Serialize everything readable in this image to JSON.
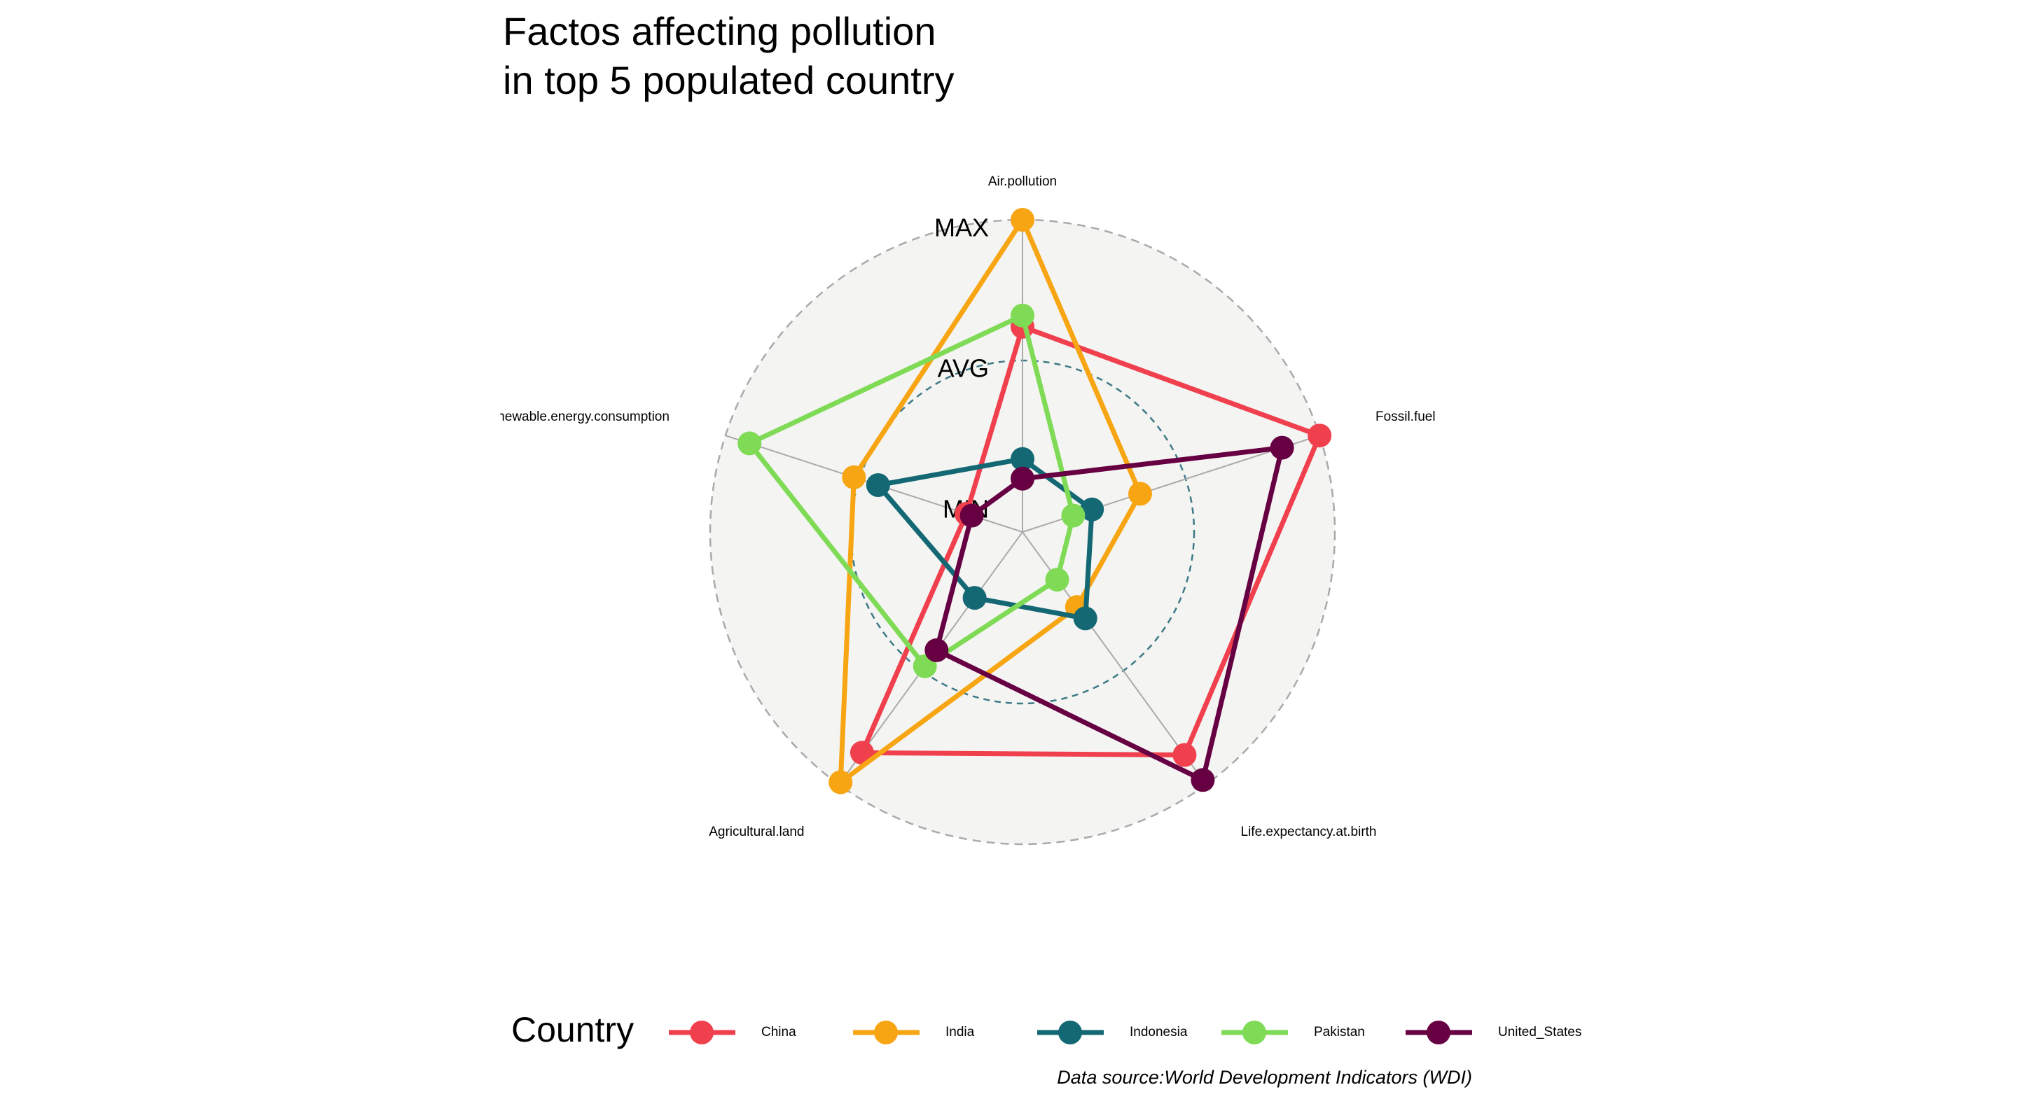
{
  "chart_data": {
    "type": "radar",
    "title_lines": [
      "Factos affecting pollution",
      "in top 5 populated country"
    ],
    "axes": [
      "Air.pollution",
      "Fossil.fuel",
      "Life.expectancy.at.birth",
      "Agricultural.land",
      "Renewable.energy.consumption"
    ],
    "grid_labels": {
      "max": "MAX",
      "avg": "AVG",
      "min": "MIN"
    },
    "scale": {
      "min": 0,
      "max": 1
    },
    "legend_title": "Country",
    "legend_position": "bottom",
    "caption": "Data source:World Development Indicators (WDI)",
    "series": [
      {
        "name": "China",
        "color": "#f0404e",
        "values": [
          0.62,
          1.0,
          0.87,
          0.86,
          0.1
        ]
      },
      {
        "name": "India",
        "color": "#f7a512",
        "values": [
          1.0,
          0.33,
          0.22,
          0.99,
          0.52
        ]
      },
      {
        "name": "Indonesia",
        "color": "#136874",
        "values": [
          0.15,
          0.15,
          0.27,
          0.18,
          0.43
        ]
      },
      {
        "name": "Pakistan",
        "color": "#7fdb55",
        "values": [
          0.66,
          0.08,
          0.1,
          0.48,
          0.91
        ]
      },
      {
        "name": "United_States",
        "color": "#670043",
        "values": [
          0.08,
          0.86,
          0.98,
          0.41,
          0.08
        ]
      }
    ]
  }
}
